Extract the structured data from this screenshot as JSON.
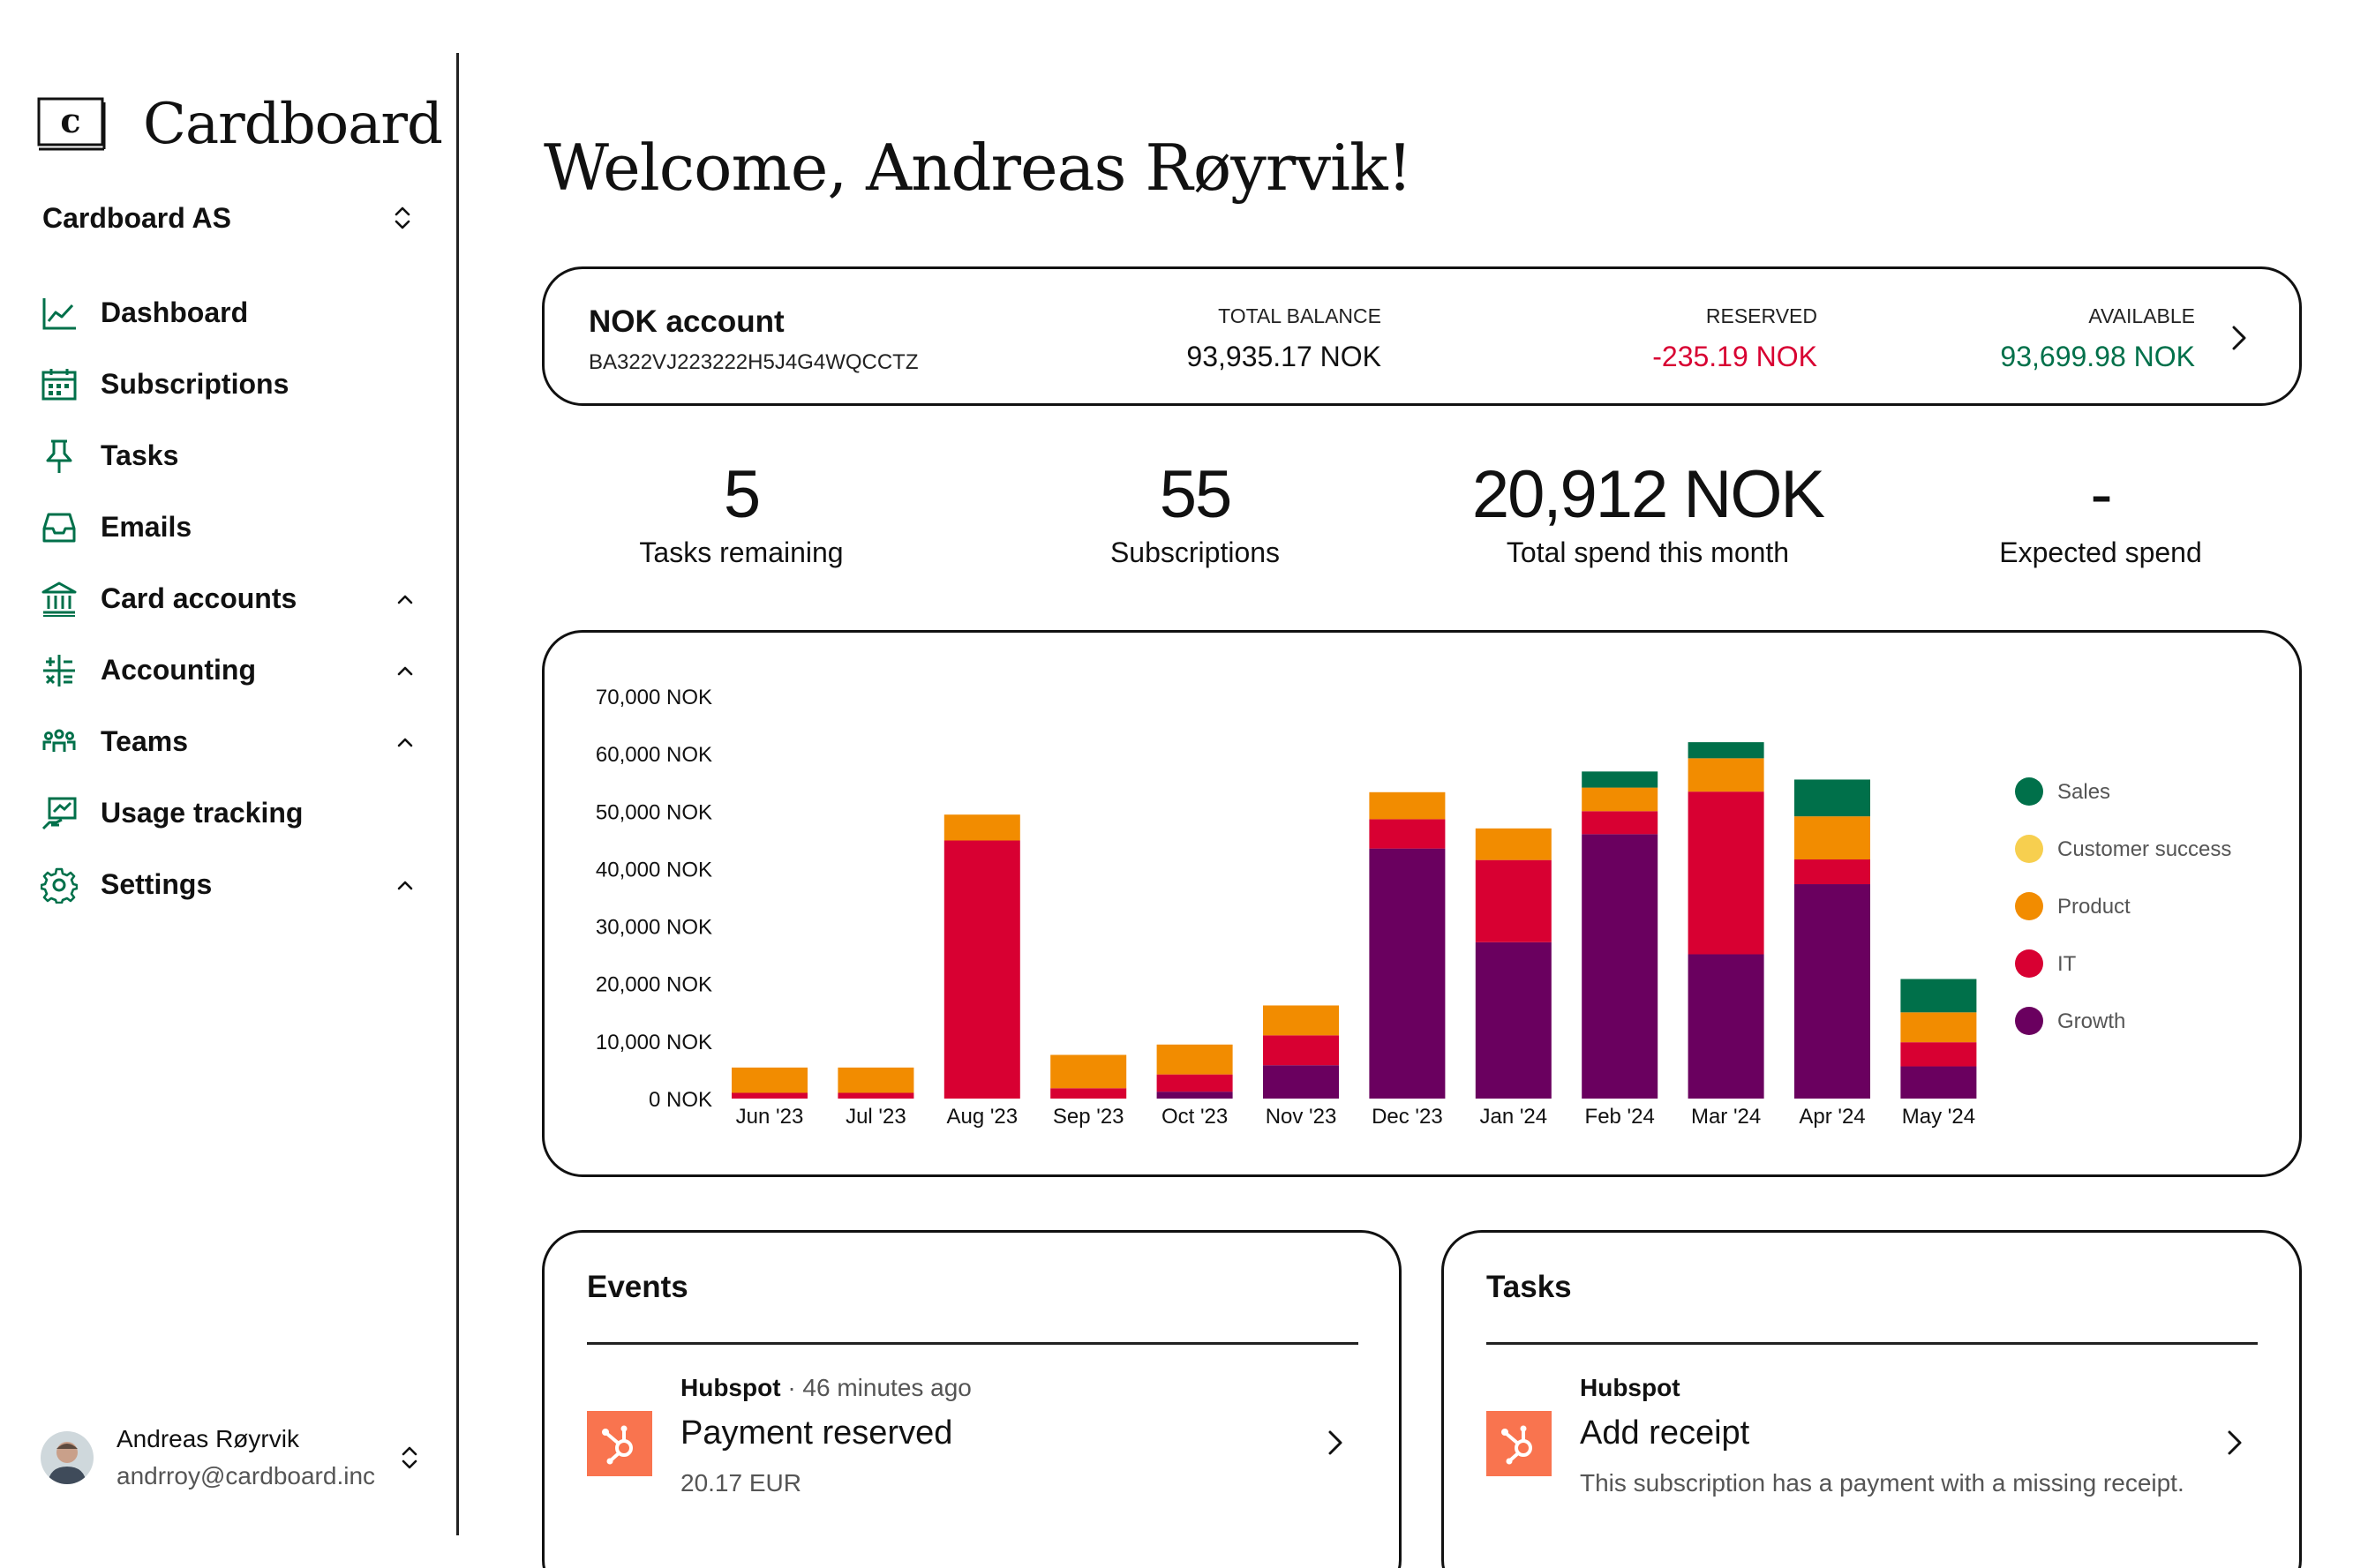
{
  "app": {
    "logo_text": "Cardboard",
    "logo_letter": "c"
  },
  "org": {
    "name": "Cardboard AS"
  },
  "sidebar": {
    "items": [
      {
        "label": "Dashboard",
        "icon": "chart-line-icon",
        "expandable": false
      },
      {
        "label": "Subscriptions",
        "icon": "calendar-icon",
        "expandable": false
      },
      {
        "label": "Tasks",
        "icon": "pin-icon",
        "expandable": false
      },
      {
        "label": "Emails",
        "icon": "inbox-icon",
        "expandable": false
      },
      {
        "label": "Card accounts",
        "icon": "bank-icon",
        "expandable": true
      },
      {
        "label": "Accounting",
        "icon": "calculator-icon",
        "expandable": true
      },
      {
        "label": "Teams",
        "icon": "people-icon",
        "expandable": true
      },
      {
        "label": "Usage tracking",
        "icon": "usage-icon",
        "expandable": false
      },
      {
        "label": "Settings",
        "icon": "gear-icon",
        "expandable": true
      }
    ]
  },
  "user": {
    "name": "Andreas Røyrvik",
    "email": "andrroy@cardboard.inc"
  },
  "welcome": "Welcome, Andreas Røyrvik!",
  "account": {
    "name": "NOK account",
    "id": "BA322VJ223222H5J4G4WQCCTZ",
    "total_balance_label": "TOTAL BALANCE",
    "total_balance": "93,935.17 NOK",
    "reserved_label": "RESERVED",
    "reserved": "-235.19 NOK",
    "available_label": "AVAILABLE",
    "available": "93,699.98 NOK"
  },
  "stats": [
    {
      "value": "5",
      "label": "Tasks remaining"
    },
    {
      "value": "55",
      "label": "Subscriptions"
    },
    {
      "value": "20,912 NOK",
      "label": "Total spend this month"
    },
    {
      "value": "-",
      "label": "Expected spend"
    }
  ],
  "colors": {
    "green": "#00704a",
    "red": "#d80032",
    "orange": "#f28c00",
    "yellow": "#f7cf4f",
    "purple": "#6a005f",
    "text_dark": "#111111"
  },
  "chart_data": {
    "type": "bar",
    "stacked": true,
    "categories": [
      "Jun '23",
      "Jul '23",
      "Aug '23",
      "Sep '23",
      "Oct '23",
      "Nov '23",
      "Dec '23",
      "Jan '24",
      "Feb '24",
      "Mar '24",
      "Apr '24",
      "May '24"
    ],
    "yticks": [
      "0 NOK",
      "10,000 NOK",
      "20,000 NOK",
      "30,000 NOK",
      "40,000 NOK",
      "50,000 NOK",
      "60,000 NOK",
      "70,000 NOK"
    ],
    "ylim": [
      0,
      70000
    ],
    "legend_position": "right",
    "series": [
      {
        "name": "Growth",
        "color": "#6a005f",
        "values": [
          0,
          0,
          0,
          0,
          1200,
          5800,
          43500,
          27200,
          46000,
          25100,
          37300,
          5600
        ]
      },
      {
        "name": "IT",
        "color": "#d80032",
        "values": [
          1000,
          1000,
          44900,
          1800,
          3000,
          5200,
          5100,
          14300,
          4000,
          28300,
          4300,
          4200
        ]
      },
      {
        "name": "Product",
        "color": "#f28c00",
        "values": [
          4400,
          4400,
          4500,
          5800,
          5200,
          5200,
          4700,
          5500,
          4100,
          5800,
          7500,
          5200
        ]
      },
      {
        "name": "Customer success",
        "color": "#f7cf4f",
        "values": [
          0,
          0,
          0,
          0,
          0,
          0,
          0,
          0,
          0,
          0,
          0,
          0
        ]
      },
      {
        "name": "Sales",
        "color": "#00704a",
        "values": [
          0,
          0,
          0,
          0,
          0,
          0,
          0,
          0,
          2800,
          2800,
          6400,
          5800
        ]
      }
    ],
    "legend_order": [
      "Sales",
      "Customer success",
      "Product",
      "IT",
      "Growth"
    ]
  },
  "events": {
    "title": "Events",
    "items": [
      {
        "source": "Hubspot",
        "separator": "·",
        "time": "46 minutes ago",
        "title": "Payment reserved",
        "sub": "20.17 EUR"
      }
    ]
  },
  "tasks": {
    "title": "Tasks",
    "items": [
      {
        "source": "Hubspot",
        "title": "Add receipt",
        "sub": "This subscription has a payment with a missing receipt."
      }
    ]
  }
}
